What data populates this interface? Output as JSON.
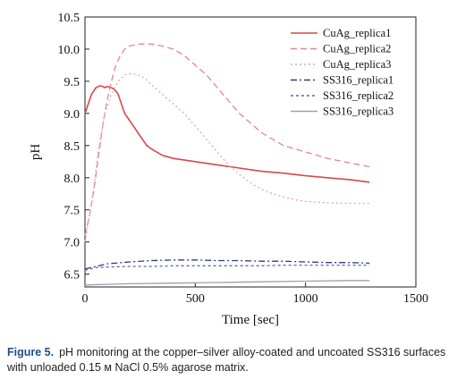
{
  "caption": {
    "label": "Figure 5.",
    "text": "pH monitoring at the copper–silver alloy-coated and uncoated SS316 surfaces with unloaded 0.15 м NaCl 0.5% agarose matrix."
  },
  "chart_data": {
    "type": "line",
    "xlabel": "Time [sec]",
    "ylabel": "pH",
    "xlim": [
      0,
      1500
    ],
    "ylim": [
      6.3,
      10.5
    ],
    "xticks": [
      0,
      500,
      1000,
      1500
    ],
    "yticks": [
      6.5,
      7.0,
      7.5,
      8.0,
      8.5,
      9.0,
      9.5,
      10.0,
      10.5
    ],
    "ytick_labels": [
      "6.5",
      "7.0",
      "7.5",
      "8.0",
      "8.5",
      "9.0",
      "9.5",
      "10.0",
      "10.5"
    ],
    "legend_position": "top-right",
    "series": [
      {
        "name": "CuAg_replica1",
        "color": "#d9474a",
        "style": "solid",
        "x": [
          0,
          10,
          20,
          30,
          40,
          50,
          60,
          70,
          80,
          90,
          100,
          110,
          120,
          130,
          140,
          150,
          160,
          170,
          180,
          190,
          200,
          220,
          240,
          260,
          280,
          300,
          350,
          400,
          500,
          600,
          700,
          800,
          900,
          1000,
          1100,
          1200,
          1290
        ],
        "y": [
          9.0,
          9.1,
          9.2,
          9.3,
          9.35,
          9.4,
          9.42,
          9.43,
          9.42,
          9.4,
          9.42,
          9.41,
          9.4,
          9.38,
          9.35,
          9.3,
          9.2,
          9.1,
          9.0,
          8.95,
          8.9,
          8.8,
          8.7,
          8.6,
          8.5,
          8.45,
          8.35,
          8.3,
          8.25,
          8.2,
          8.15,
          8.1,
          8.07,
          8.03,
          8.0,
          7.97,
          7.93
        ]
      },
      {
        "name": "CuAg_replica2",
        "color": "#e8868a",
        "style": "dashed",
        "x": [
          0,
          20,
          40,
          60,
          80,
          100,
          120,
          140,
          160,
          180,
          200,
          250,
          300,
          350,
          400,
          450,
          500,
          550,
          600,
          650,
          700,
          750,
          800,
          900,
          1000,
          1100,
          1200,
          1290
        ],
        "y": [
          7.1,
          7.4,
          7.8,
          8.3,
          8.8,
          9.2,
          9.5,
          9.75,
          9.9,
          10.0,
          10.05,
          10.08,
          10.08,
          10.05,
          10.0,
          9.9,
          9.75,
          9.6,
          9.4,
          9.2,
          9.0,
          8.85,
          8.7,
          8.5,
          8.4,
          8.3,
          8.23,
          8.17
        ]
      },
      {
        "name": "CuAg_replica3",
        "color": "#e7a6a4",
        "style": "dotted",
        "x": [
          0,
          30,
          60,
          90,
          120,
          150,
          180,
          210,
          240,
          270,
          300,
          350,
          400,
          450,
          500,
          550,
          600,
          650,
          700,
          750,
          800,
          850,
          900,
          950,
          1000,
          1100,
          1200,
          1290
        ],
        "y": [
          7.0,
          7.6,
          8.4,
          9.0,
          9.3,
          9.5,
          9.6,
          9.62,
          9.6,
          9.55,
          9.45,
          9.3,
          9.15,
          9.0,
          8.8,
          8.6,
          8.4,
          8.2,
          8.05,
          7.92,
          7.82,
          7.75,
          7.7,
          7.66,
          7.63,
          7.61,
          7.6,
          7.6
        ]
      },
      {
        "name": "SS316_replica1",
        "color": "#2b3a8c",
        "style": "dashdot",
        "x": [
          0,
          50,
          100,
          200,
          300,
          400,
          500,
          600,
          700,
          800,
          900,
          1000,
          1100,
          1200,
          1290
        ],
        "y": [
          6.58,
          6.62,
          6.66,
          6.69,
          6.71,
          6.72,
          6.72,
          6.71,
          6.71,
          6.7,
          6.7,
          6.69,
          6.68,
          6.68,
          6.67
        ]
      },
      {
        "name": "SS316_replica2",
        "color": "#5a6ab0",
        "style": "shortdash",
        "x": [
          0,
          50,
          100,
          200,
          300,
          400,
          500,
          600,
          700,
          800,
          900,
          1000,
          1100,
          1200,
          1290
        ],
        "y": [
          6.56,
          6.6,
          6.61,
          6.62,
          6.62,
          6.63,
          6.63,
          6.63,
          6.63,
          6.63,
          6.64,
          6.64,
          6.64,
          6.64,
          6.64
        ]
      },
      {
        "name": "SS316_replica3",
        "color": "#9aa0b0",
        "style": "solid",
        "x": [
          0,
          200,
          400,
          600,
          800,
          1000,
          1200,
          1290
        ],
        "y": [
          6.33,
          6.35,
          6.36,
          6.37,
          6.38,
          6.39,
          6.4,
          6.4
        ]
      }
    ]
  }
}
